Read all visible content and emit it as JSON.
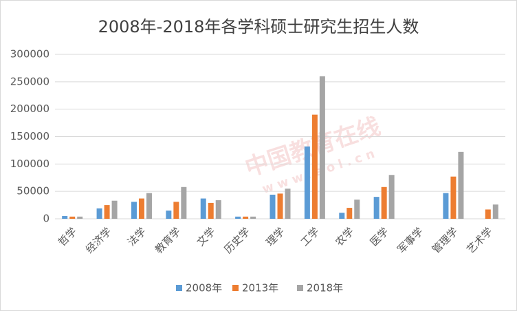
{
  "chart_data": {
    "type": "bar",
    "title": "2008年-2018年各学科硕士研究生招生人数",
    "watermark": [
      "中国教育在线",
      "www.eol.cn"
    ],
    "categories": [
      "哲学",
      "经济学",
      "法学",
      "教育学",
      "文学",
      "历史学",
      "理学",
      "工学",
      "农学",
      "医学",
      "军事学",
      "管理学",
      "艺术学"
    ],
    "series": [
      {
        "name": "2008年",
        "color": "#5b9bd5",
        "values": [
          5000,
          19000,
          31000,
          15000,
          37000,
          4000,
          44000,
          132000,
          11000,
          40000,
          0,
          47000,
          null
        ]
      },
      {
        "name": "2013年",
        "color": "#ed7d31",
        "values": [
          4000,
          25000,
          37000,
          31000,
          29000,
          4000,
          46000,
          190000,
          20000,
          58000,
          0,
          77000,
          17000
        ]
      },
      {
        "name": "2018年",
        "color": "#a5a5a5",
        "values": [
          4000,
          33000,
          47000,
          58000,
          34000,
          4000,
          55000,
          260000,
          35000,
          80000,
          0,
          122000,
          26000
        ]
      }
    ],
    "ylim": [
      0,
      300000
    ],
    "yticks": [
      0,
      50000,
      100000,
      150000,
      200000,
      250000,
      300000
    ],
    "grid": true,
    "legend": "bottom"
  }
}
